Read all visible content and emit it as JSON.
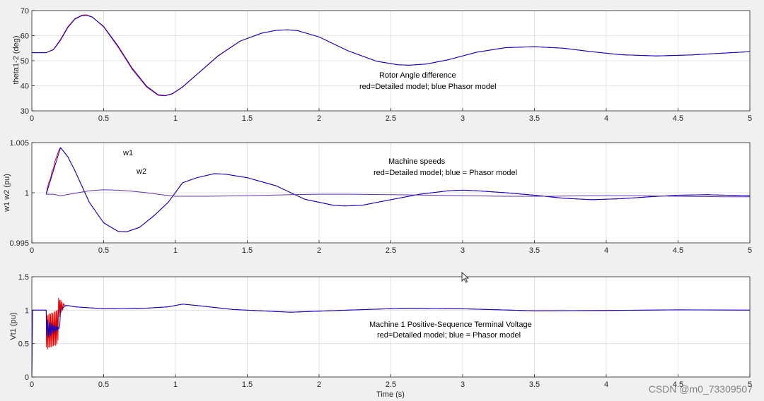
{
  "chart_data": [
    {
      "type": "line",
      "ylabel": "theta1-2 (deg)",
      "xlim": [
        0,
        5
      ],
      "ylim": [
        30,
        70
      ],
      "xticks": [
        "0",
        "0.5",
        "1",
        "1.5",
        "2",
        "2.5",
        "3",
        "3.5",
        "4",
        "4.5",
        "5"
      ],
      "yticks": [
        "30",
        "40",
        "50",
        "60",
        "70"
      ],
      "grid": true,
      "annotations": [
        "Rotor Angle difference",
        "red=Detailed model; blue Phasor model"
      ],
      "series": [
        {
          "color": "#e00000",
          "x": [
            0,
            0.1,
            0.15,
            0.2,
            0.25,
            0.3,
            0.35,
            0.38,
            0.42,
            0.5,
            0.6,
            0.7,
            0.8,
            0.88,
            0.93,
            0.98,
            1.05,
            1.15,
            1.3,
            1.45,
            1.6,
            1.7,
            1.78,
            1.85,
            2.0,
            2.2,
            2.4,
            2.55,
            2.63,
            2.75,
            2.9,
            3.1,
            3.3,
            3.5,
            3.7,
            3.9,
            4.1,
            4.35,
            4.6,
            4.8,
            5.0
          ],
          "y": [
            53.2,
            53.2,
            54.5,
            58.5,
            63.5,
            66.8,
            68.2,
            68.3,
            67.5,
            63.5,
            55.5,
            46.5,
            39.5,
            36.2,
            36.0,
            36.8,
            39.5,
            44.5,
            52.0,
            57.8,
            61.0,
            62.1,
            62.3,
            62.0,
            59.5,
            54.0,
            49.8,
            48.4,
            48.2,
            48.7,
            50.4,
            53.4,
            55.2,
            55.6,
            55.0,
            53.6,
            52.4,
            51.9,
            52.3,
            53.0,
            53.6
          ]
        },
        {
          "color": "#0000e0",
          "x": [
            0,
            0.1,
            0.15,
            0.2,
            0.25,
            0.3,
            0.35,
            0.38,
            0.42,
            0.5,
            0.6,
            0.7,
            0.8,
            0.88,
            0.93,
            0.98,
            1.05,
            1.15,
            1.3,
            1.45,
            1.6,
            1.7,
            1.78,
            1.85,
            2.0,
            2.2,
            2.4,
            2.55,
            2.63,
            2.75,
            2.9,
            3.1,
            3.3,
            3.5,
            3.7,
            3.9,
            4.1,
            4.35,
            4.6,
            4.8,
            5.0
          ],
          "y": [
            53.2,
            53.2,
            54.4,
            58.2,
            63.2,
            66.6,
            68.0,
            68.1,
            67.4,
            63.7,
            55.9,
            46.9,
            39.8,
            36.4,
            36.1,
            36.9,
            39.6,
            44.6,
            52.1,
            57.8,
            61.0,
            62.1,
            62.3,
            62.0,
            59.5,
            54.0,
            49.8,
            48.4,
            48.2,
            48.7,
            50.4,
            53.4,
            55.2,
            55.6,
            55.0,
            53.6,
            52.4,
            51.9,
            52.3,
            53.0,
            53.6
          ]
        }
      ]
    },
    {
      "type": "line",
      "ylabel": "w1 w2 (pu)",
      "xlim": [
        0,
        5
      ],
      "ylim": [
        0.995,
        1.005
      ],
      "xticks": [
        "0",
        "0.5",
        "1",
        "1.5",
        "2",
        "2.5",
        "3",
        "3.5",
        "4",
        "4.5",
        "5"
      ],
      "yticks": [
        "0.995",
        "1",
        "1.005"
      ],
      "grid": true,
      "annotations": [
        "w1",
        "w2",
        "Machine speeds",
        "red=Detailed model; blue = Phasor model"
      ],
      "series": [
        {
          "color": "#e00000",
          "x": [
            0.1,
            0.11,
            0.12,
            0.13,
            0.14,
            0.15,
            0.16,
            0.17,
            0.18,
            0.19,
            0.2,
            0.25,
            0.3,
            0.4,
            0.5,
            0.6,
            0.66,
            0.75,
            0.85,
            0.95,
            1.05,
            1.15,
            1.27,
            1.35,
            1.5,
            1.7,
            1.9,
            2.1,
            2.18,
            2.3,
            2.5,
            2.7,
            2.9,
            3.0,
            3.1,
            3.3,
            3.5,
            3.7,
            3.9,
            4.1,
            4.3,
            4.5,
            4.7,
            5.0
          ],
          "y": [
            0.99985,
            1.0006,
            1.0011,
            1.0014,
            1.0021,
            1.0024,
            1.0031,
            1.0035,
            1.0039,
            1.0043,
            1.0045,
            1.0036,
            1.0022,
            0.99905,
            0.997,
            0.99615,
            0.9961,
            0.99655,
            0.9977,
            0.99905,
            1.001,
            1.0015,
            1.0019,
            1.00185,
            1.0015,
            1.0007,
            0.99935,
            0.99875,
            0.99868,
            0.99875,
            0.9993,
            0.99985,
            1.0002,
            1.00025,
            1.0002,
            1.0,
            0.99975,
            0.99945,
            0.9993,
            0.9994,
            0.9996,
            0.99975,
            0.9998,
            0.9997
          ]
        },
        {
          "color": "#0000e0",
          "x": [
            0.1,
            0.15,
            0.2,
            0.25,
            0.3,
            0.4,
            0.5,
            0.6,
            0.66,
            0.75,
            0.85,
            0.95,
            1.05,
            1.15,
            1.27,
            1.35,
            1.5,
            1.7,
            1.9,
            2.1,
            2.18,
            2.3,
            2.5,
            2.7,
            2.9,
            3.0,
            3.1,
            3.3,
            3.5,
            3.7,
            3.9,
            4.1,
            4.3,
            4.5,
            4.7,
            5.0
          ],
          "y": [
            0.99985,
            1.0022,
            1.0045,
            1.0036,
            1.0022,
            0.99905,
            0.997,
            0.99615,
            0.9961,
            0.99655,
            0.9977,
            0.99905,
            1.001,
            1.0015,
            1.0019,
            1.00185,
            1.0015,
            1.0007,
            0.99935,
            0.99875,
            0.99868,
            0.99875,
            0.9993,
            0.99985,
            1.0002,
            1.00025,
            1.0002,
            1.0,
            0.99975,
            0.99945,
            0.9993,
            0.9994,
            0.9996,
            0.99975,
            0.9998,
            0.9997
          ]
        },
        {
          "color": "#6030b0",
          "x": [
            0.1,
            0.15,
            0.2,
            0.3,
            0.4,
            0.5,
            0.6,
            0.7,
            0.8,
            0.9,
            1.0,
            1.2,
            1.5,
            1.8,
            2.0,
            2.2,
            2.5,
            2.8,
            3.0,
            3.3,
            3.6,
            3.9,
            4.2,
            4.5,
            4.8,
            5.0
          ],
          "y": [
            0.99985,
            0.99985,
            0.9997,
            0.99995,
            1.0002,
            1.0003,
            1.00025,
            1.00015,
            1.0,
            0.9998,
            0.99965,
            0.99965,
            0.9997,
            0.9998,
            0.99985,
            0.99985,
            0.9998,
            0.99975,
            0.9997,
            0.99965,
            0.99965,
            0.9997,
            0.9997,
            0.99965,
            0.9996,
            0.9996
          ]
        }
      ]
    },
    {
      "type": "line",
      "ylabel": "Vt1 (pu)",
      "xlabel": "Time (s)",
      "xlim": [
        0,
        5
      ],
      "ylim": [
        0,
        1.5
      ],
      "xticks": [
        "0",
        "0.5",
        "1",
        "1.5",
        "2",
        "2.5",
        "3",
        "3.5",
        "4",
        "4.5",
        "5"
      ],
      "yticks": [
        "0",
        "0.5",
        "1",
        "1.5"
      ],
      "grid": true,
      "annotations": [
        "Machine 1 Positive-Sequence Terminal Voltage",
        "red=Detailed model; blue = Phasor model"
      ],
      "series": [
        {
          "color": "#e00000",
          "x": [
            0,
            0.005,
            0.01,
            0.1,
            0.102,
            0.106,
            0.11,
            0.114,
            0.118,
            0.122,
            0.126,
            0.13,
            0.134,
            0.138,
            0.142,
            0.146,
            0.15,
            0.154,
            0.158,
            0.162,
            0.166,
            0.17,
            0.174,
            0.178,
            0.182,
            0.186,
            0.19,
            0.194,
            0.198,
            0.202,
            0.206,
            0.21,
            0.215,
            0.22,
            0.23,
            0.25,
            0.3,
            0.5,
            0.8,
            0.95,
            1.05,
            1.15,
            1.4,
            1.8,
            2.2,
            2.6,
            3.0,
            3.5,
            4.0,
            4.5,
            5.0
          ],
          "y": [
            0.0,
            1.0,
            1.0,
            1.0,
            0.45,
            0.92,
            0.42,
            0.93,
            0.44,
            0.95,
            0.45,
            0.94,
            0.45,
            0.96,
            0.46,
            0.95,
            0.47,
            0.97,
            0.48,
            0.98,
            0.47,
            0.99,
            0.5,
            1.0,
            0.55,
            1.18,
            0.9,
            1.15,
            0.95,
            1.15,
            0.97,
            1.12,
            1.0,
            1.1,
            1.07,
            1.07,
            1.05,
            1.02,
            1.03,
            1.05,
            1.09,
            1.07,
            1.01,
            0.97,
            1.0,
            1.03,
            1.02,
            0.99,
            0.995,
            1.005,
            1.0
          ]
        },
        {
          "color": "#0000e0",
          "x": [
            0,
            0.005,
            0.01,
            0.1,
            0.104,
            0.11,
            0.116,
            0.122,
            0.128,
            0.134,
            0.14,
            0.146,
            0.152,
            0.158,
            0.164,
            0.17,
            0.176,
            0.182,
            0.188,
            0.194,
            0.2,
            0.21,
            0.22,
            0.23,
            0.25,
            0.3,
            0.5,
            0.8,
            0.95,
            1.05,
            1.15,
            1.4,
            1.8,
            2.2,
            2.6,
            3.0,
            3.5,
            4.0,
            4.5,
            5.0
          ],
          "y": [
            0.0,
            1.0,
            1.0,
            1.0,
            0.62,
            0.85,
            0.6,
            0.82,
            0.62,
            0.8,
            0.64,
            0.78,
            0.66,
            0.77,
            0.68,
            0.76,
            0.7,
            0.75,
            0.72,
            0.76,
            1.0,
            1.02,
            1.04,
            1.06,
            1.07,
            1.05,
            1.02,
            1.03,
            1.05,
            1.09,
            1.07,
            1.01,
            0.97,
            1.0,
            1.03,
            1.02,
            0.99,
            0.995,
            1.005,
            1.0
          ]
        }
      ]
    }
  ],
  "watermark": "CSDN @m0_73309507"
}
